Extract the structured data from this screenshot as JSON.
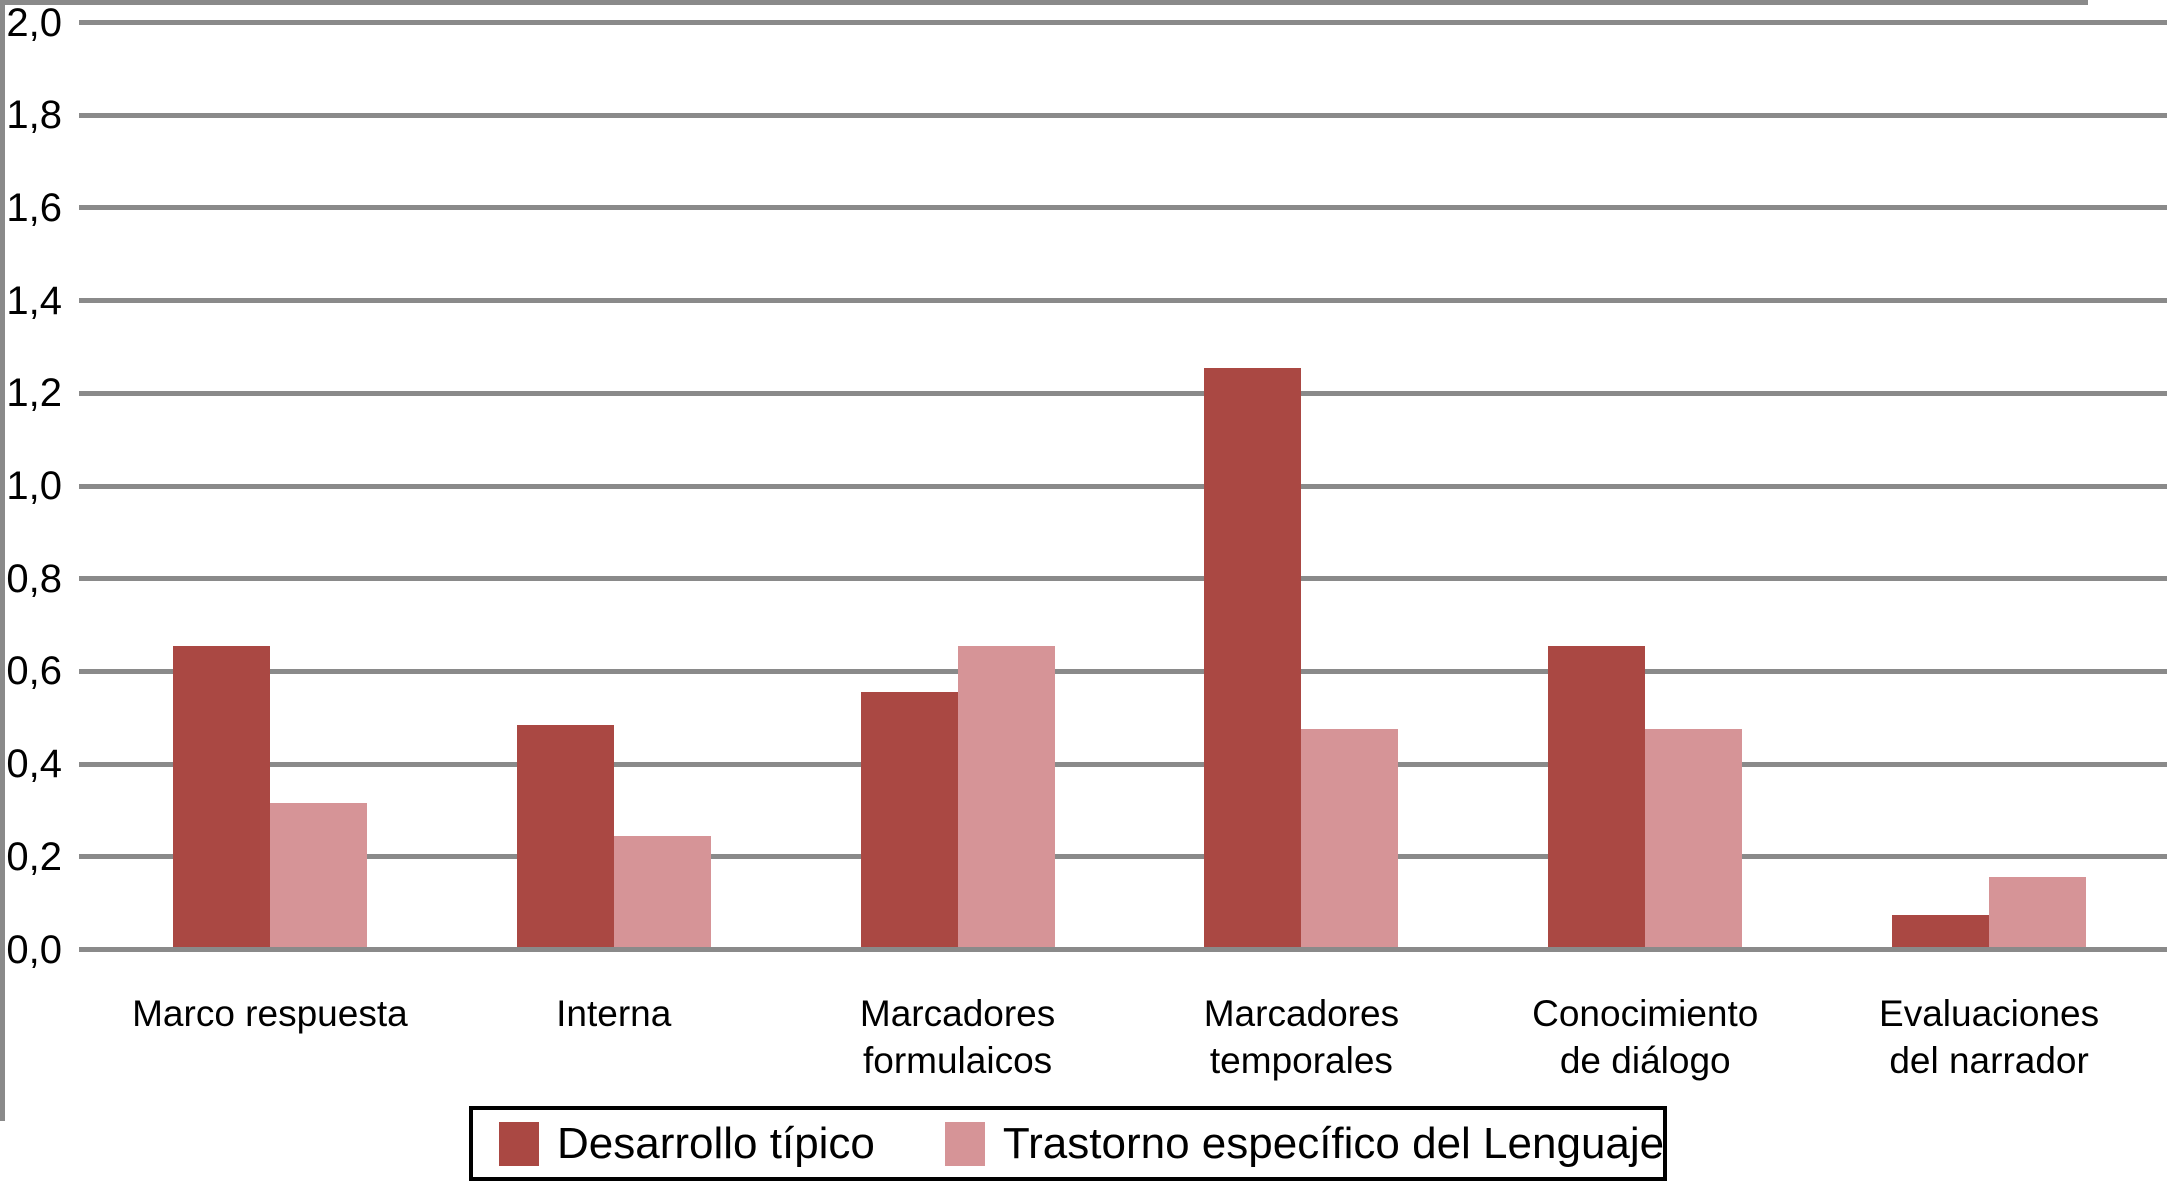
{
  "chart_data": {
    "type": "bar",
    "title": "",
    "categories": [
      "Marco respuesta",
      "Interna",
      "Marcadores formulaicos",
      "Marcadores temporales",
      "Conocimiento de diálogo",
      "Evaluaciones del narrador"
    ],
    "categories_display": [
      [
        "Marco respuesta"
      ],
      [
        "Interna"
      ],
      [
        "Marcadores",
        "formulaicos"
      ],
      [
        "Marcadores",
        "temporales"
      ],
      [
        "Conocimiento",
        "de diálogo"
      ],
      [
        "Evaluaciones",
        "del narrador"
      ]
    ],
    "series": [
      {
        "name": "Desarrollo típico",
        "color": "#AA4843",
        "values": [
          0.65,
          0.48,
          0.55,
          1.25,
          0.65,
          0.07
        ]
      },
      {
        "name": "Trastorno específico del Lenguaje",
        "color": "#D69497",
        "values": [
          0.31,
          0.24,
          0.65,
          0.47,
          0.47,
          0.15
        ]
      }
    ],
    "xlabel": "",
    "ylabel": "",
    "ylim": [
      0,
      2.0
    ],
    "ytick_step": 0.2,
    "ytick_labels": [
      "0,0",
      "0,2",
      "0,4",
      "0,6",
      "0,8",
      "1,0",
      "1,2",
      "1,4",
      "1,6",
      "1,8",
      "2,0"
    ],
    "grid": true,
    "gridline_color": "#8A8A8A",
    "axis_color": "#8A8A8A",
    "legend_position": "bottom",
    "legend_border_color": "#000000"
  }
}
